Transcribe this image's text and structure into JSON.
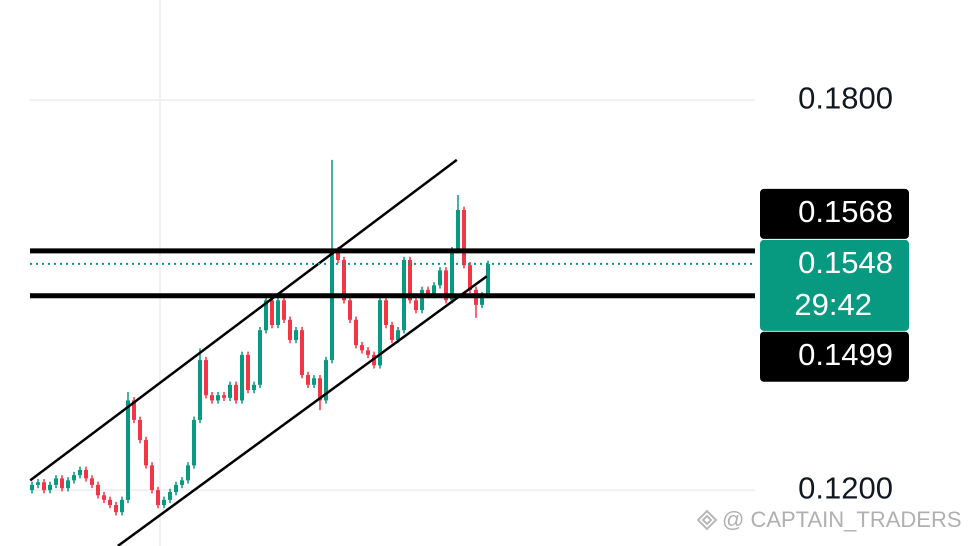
{
  "chart_data": {
    "type": "candlestick",
    "up_color": "#089981",
    "down_color": "#f23645",
    "ylim": [
      0.1954,
      0.1114
    ],
    "yticks": [
      {
        "value": 0.18,
        "label": "0.1800"
      },
      {
        "value": 0.12,
        "label": "0.1200"
      }
    ],
    "grid": true,
    "open": [
      0.12,
      0.1208,
      0.1212,
      0.12,
      0.1208,
      0.1218,
      0.1203,
      0.1215,
      0.1223,
      0.1231,
      0.1218,
      0.1208,
      0.1192,
      0.1185,
      0.1177,
      0.1166,
      0.1185,
      0.1338,
      0.1308,
      0.1277,
      0.1238,
      0.12,
      0.1177,
      0.1185,
      0.1197,
      0.1208,
      0.1215,
      0.1238,
      0.1308,
      0.14,
      0.1346,
      0.1338,
      0.1346,
      0.1342,
      0.1362,
      0.1338,
      0.1408,
      0.1354,
      0.1362,
      0.1446,
      0.1492,
      0.1454,
      0.1492,
      0.1462,
      0.1431,
      0.1446,
      0.1377,
      0.1362,
      0.1372,
      0.1338,
      0.14,
      0.1569,
      0.1554,
      0.1492,
      0.1462,
      0.1423,
      0.1415,
      0.1408,
      0.1392,
      0.1492,
      0.1454,
      0.1431,
      0.1446,
      0.1554,
      0.1492,
      0.1477,
      0.1508,
      0.15,
      0.1515,
      0.1538,
      0.1492,
      0.1569,
      0.1631,
      0.1546,
      0.1508,
      0.1485,
      0.15
    ],
    "high": [
      0.1213,
      0.1217,
      0.1217,
      0.1213,
      0.1223,
      0.1223,
      0.122,
      0.1228,
      0.1236,
      0.1236,
      0.1223,
      0.1213,
      0.1197,
      0.119,
      0.1182,
      0.119,
      0.1351,
      0.1343,
      0.1313,
      0.1282,
      0.1243,
      0.1205,
      0.119,
      0.1202,
      0.1213,
      0.122,
      0.1243,
      0.1313,
      0.1418,
      0.1405,
      0.1351,
      0.1351,
      0.1351,
      0.1367,
      0.1367,
      0.1413,
      0.1413,
      0.1367,
      0.1451,
      0.1497,
      0.1497,
      0.1497,
      0.1497,
      0.1467,
      0.1451,
      0.1451,
      0.1382,
      0.1377,
      0.1377,
      0.1405,
      0.1708,
      0.1574,
      0.1559,
      0.1497,
      0.1467,
      0.1428,
      0.142,
      0.1413,
      0.1497,
      0.1497,
      0.1459,
      0.1451,
      0.1559,
      0.1559,
      0.1497,
      0.1513,
      0.1513,
      0.152,
      0.1543,
      0.1543,
      0.1574,
      0.1654,
      0.1636,
      0.1551,
      0.1513,
      0.1505,
      0.1553
    ],
    "low": [
      0.1195,
      0.1203,
      0.1195,
      0.1195,
      0.1203,
      0.1198,
      0.1198,
      0.121,
      0.1218,
      0.1213,
      0.1203,
      0.1187,
      0.118,
      0.1172,
      0.1161,
      0.1161,
      0.118,
      0.1303,
      0.1272,
      0.1233,
      0.1195,
      0.1172,
      0.1172,
      0.118,
      0.1192,
      0.1203,
      0.121,
      0.1233,
      0.1303,
      0.1341,
      0.1333,
      0.1333,
      0.1337,
      0.1337,
      0.1333,
      0.1333,
      0.1349,
      0.1349,
      0.1357,
      0.1441,
      0.1449,
      0.1449,
      0.1457,
      0.1426,
      0.1426,
      0.1372,
      0.1357,
      0.1357,
      0.1323,
      0.1333,
      0.1395,
      0.1549,
      0.1487,
      0.1457,
      0.1418,
      0.141,
      0.1403,
      0.1387,
      0.1387,
      0.1449,
      0.1426,
      0.1426,
      0.1441,
      0.1487,
      0.1472,
      0.1472,
      0.1495,
      0.1495,
      0.151,
      0.1487,
      0.1487,
      0.1564,
      0.1541,
      0.1503,
      0.1465,
      0.148,
      0.1495
    ],
    "close": [
      0.1208,
      0.1212,
      0.12,
      0.1208,
      0.1218,
      0.1203,
      0.1215,
      0.1223,
      0.1231,
      0.1218,
      0.1208,
      0.1192,
      0.1185,
      0.1177,
      0.1166,
      0.1185,
      0.1338,
      0.1308,
      0.1277,
      0.1238,
      0.12,
      0.1177,
      0.1185,
      0.1197,
      0.1208,
      0.1215,
      0.1238,
      0.1308,
      0.14,
      0.1346,
      0.1338,
      0.1346,
      0.1342,
      0.1362,
      0.1338,
      0.1408,
      0.1354,
      0.1362,
      0.1446,
      0.1492,
      0.1454,
      0.1492,
      0.1462,
      0.1431,
      0.1446,
      0.1377,
      0.1362,
      0.1372,
      0.1338,
      0.14,
      0.1569,
      0.1554,
      0.1492,
      0.1462,
      0.1423,
      0.1415,
      0.1408,
      0.1392,
      0.1492,
      0.1454,
      0.1431,
      0.1446,
      0.1554,
      0.1492,
      0.1477,
      0.1508,
      0.15,
      0.1515,
      0.1538,
      0.1492,
      0.1569,
      0.1631,
      0.1546,
      0.1508,
      0.1485,
      0.15,
      0.1548
    ],
    "levels": [
      {
        "value": 0.1568
      },
      {
        "value": 0.1499
      }
    ],
    "current_price": {
      "value": 0.1548,
      "countdown": "29:42",
      "color": "#089981"
    },
    "trendlines": [
      {
        "x": [
          -0.3,
          70.8
        ],
        "y": [
          0.1215,
          0.1708
        ]
      },
      {
        "x": [
          14.3,
          75.8
        ],
        "y": [
          0.1114,
          0.1529
        ]
      }
    ],
    "watermark": "@ CAPTAIN_TRADERS"
  }
}
